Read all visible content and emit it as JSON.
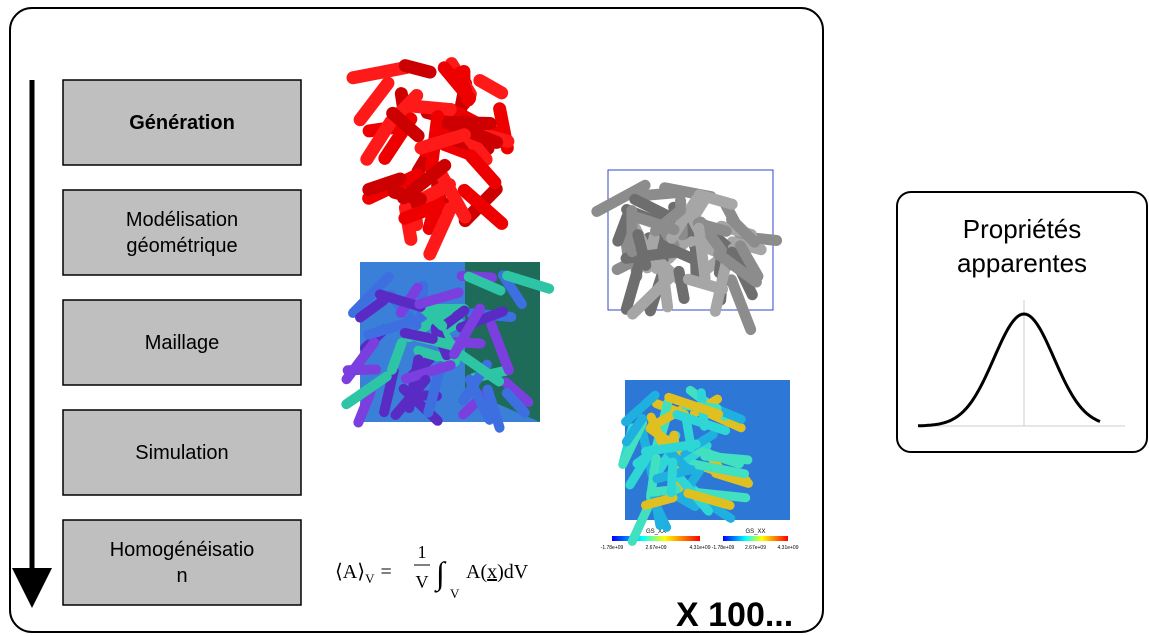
{
  "steps": [
    {
      "lines": [
        "Génération"
      ]
    },
    {
      "lines": [
        "Modélisation",
        "géométrique"
      ]
    },
    {
      "lines": [
        "Maillage"
      ]
    },
    {
      "lines": [
        "Simulation"
      ]
    },
    {
      "lines": [
        "Homogénéisatio",
        "n"
      ]
    }
  ],
  "formula": {
    "lhs": "⟨A⟩",
    "lhs_sub": "V",
    "equals": "=",
    "numerator": "1",
    "denominator": "V",
    "integral": "∫",
    "integral_sub": "V",
    "integrand": "A(",
    "variable": "x",
    "rest": ")dV"
  },
  "repeat": "X 100...",
  "colorbars": [
    {
      "title": "GS_XX",
      "labels": [
        "-1.78e+09",
        "2.67e+09",
        "4.31e+09"
      ]
    },
    {
      "title": "GS_XX",
      "labels": [
        "-1.78e+09",
        "2.67e+09",
        "4.31e+09"
      ]
    }
  ],
  "result": {
    "lines": [
      "Propriétés",
      "apparentes"
    ]
  }
}
